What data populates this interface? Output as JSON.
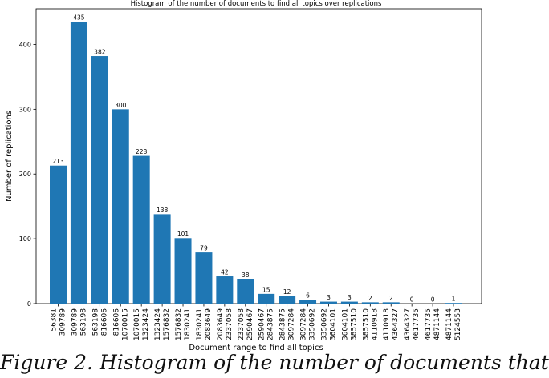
{
  "chart_data": {
    "type": "bar",
    "title": "Histogram of the number of documents to find all topics over replications",
    "xlabel": "Document range to find all topics",
    "ylabel": "Number of replications",
    "ylim": [
      0,
      455
    ],
    "yticks": [
      0,
      100,
      200,
      300,
      400
    ],
    "grid": false,
    "bar_color": "#1f77b4",
    "categories": [
      [
        "56381",
        "309789"
      ],
      [
        "309789",
        "563198"
      ],
      [
        "563198",
        "816606"
      ],
      [
        "816606",
        "1070015"
      ],
      [
        "1070015",
        "1323424"
      ],
      [
        "1323424",
        "1576832"
      ],
      [
        "1576832",
        "1830241"
      ],
      [
        "1830241",
        "2083649"
      ],
      [
        "2083649",
        "2337058"
      ],
      [
        "2337058",
        "2590467"
      ],
      [
        "2590467",
        "2843875"
      ],
      [
        "2843875",
        "3097284"
      ],
      [
        "3097284",
        "3350692"
      ],
      [
        "3350692",
        "3604101"
      ],
      [
        "3604101",
        "3857510"
      ],
      [
        "3857510",
        "4110918"
      ],
      [
        "4110918",
        "4364327"
      ],
      [
        "4364327",
        "4617735"
      ],
      [
        "4617735",
        "4871144"
      ],
      [
        "4871144",
        "5124553"
      ]
    ],
    "values": [
      213,
      435,
      382,
      300,
      228,
      138,
      101,
      79,
      42,
      38,
      15,
      12,
      6,
      3,
      3,
      2,
      2,
      0,
      0,
      1
    ],
    "data_labels": [
      "213",
      "435",
      "382",
      "300",
      "228",
      "138",
      "101",
      "79",
      "42",
      "38",
      "15",
      "12",
      "6",
      "3",
      "3",
      "2",
      "2",
      "0",
      "0",
      "1"
    ]
  },
  "caption": {
    "text": "Figure 2.   Histogram of the number of documents that"
  }
}
